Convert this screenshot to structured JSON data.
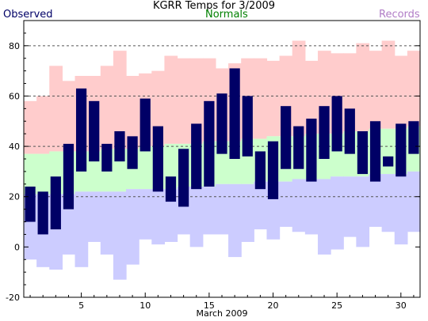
{
  "chart_data": {
    "type": "bar",
    "title": "KGRR Temps for 3/2009",
    "xlabel": "March 2009",
    "ylabel": "",
    "ylim": [
      -20,
      90
    ],
    "xlim": [
      0.5,
      31.5
    ],
    "yticks": [
      -20,
      0,
      20,
      40,
      60,
      80
    ],
    "xticks": [
      5,
      10,
      15,
      20,
      25,
      30
    ],
    "gridlines_y": [
      20,
      40,
      60,
      80
    ],
    "grid_style": "dashed horizontal",
    "legend": [
      {
        "label": "Observed",
        "color": "#000066",
        "placement": "top-left"
      },
      {
        "label": "Normals",
        "color": "#008000",
        "placement": "top-center"
      },
      {
        "label": "Records",
        "color": "#b07cc6",
        "placement": "top-right"
      }
    ],
    "days": [
      1,
      2,
      3,
      4,
      5,
      6,
      7,
      8,
      9,
      10,
      11,
      12,
      13,
      14,
      15,
      16,
      17,
      18,
      19,
      20,
      21,
      22,
      23,
      24,
      25,
      26,
      27,
      28,
      29,
      30,
      31
    ],
    "record_high": [
      58,
      60,
      72,
      66,
      68,
      68,
      72,
      78,
      68,
      69,
      70,
      76,
      75,
      75,
      75,
      71,
      73,
      75,
      75,
      74,
      76,
      82,
      74,
      78,
      77,
      77,
      81,
      78,
      82,
      76,
      78
    ],
    "normal_high": [
      37,
      37,
      38,
      38,
      38,
      38,
      39,
      39,
      39,
      40,
      40,
      41,
      41,
      41,
      42,
      42,
      42,
      43,
      43,
      44,
      44,
      44,
      45,
      45,
      45,
      46,
      46,
      47,
      47,
      47,
      48
    ],
    "normal_low": [
      21,
      21,
      21,
      21,
      22,
      22,
      22,
      22,
      23,
      23,
      23,
      23,
      24,
      24,
      24,
      25,
      25,
      25,
      26,
      26,
      26,
      27,
      27,
      27,
      28,
      28,
      28,
      29,
      29,
      29,
      30
    ],
    "record_low": [
      -5,
      -8,
      -9,
      -3,
      -8,
      2,
      -3,
      -13,
      -7,
      3,
      1,
      2,
      5,
      0,
      5,
      5,
      -4,
      2,
      7,
      3,
      8,
      6,
      5,
      -3,
      -1,
      4,
      0,
      8,
      6,
      1,
      6
    ],
    "series": [
      {
        "name": "Observed High",
        "values": [
          24,
          22,
          28,
          41,
          63,
          58,
          41,
          46,
          44,
          59,
          48,
          28,
          39,
          49,
          58,
          61,
          71,
          60,
          38,
          42,
          56,
          48,
          51,
          56,
          60,
          55,
          46,
          50,
          36,
          49,
          50
        ]
      },
      {
        "name": "Observed Low",
        "values": [
          10,
          5,
          7,
          15,
          30,
          34,
          30,
          34,
          31,
          38,
          22,
          18,
          16,
          23,
          24,
          37,
          35,
          36,
          23,
          19,
          31,
          31,
          26,
          35,
          38,
          37,
          29,
          26,
          32,
          28,
          37
        ]
      }
    ],
    "colors": {
      "observed": "#000066",
      "normal_band": "#ccffcc",
      "record_warm_band": "#ffcccc",
      "record_cold_band": "#ccccff"
    }
  }
}
